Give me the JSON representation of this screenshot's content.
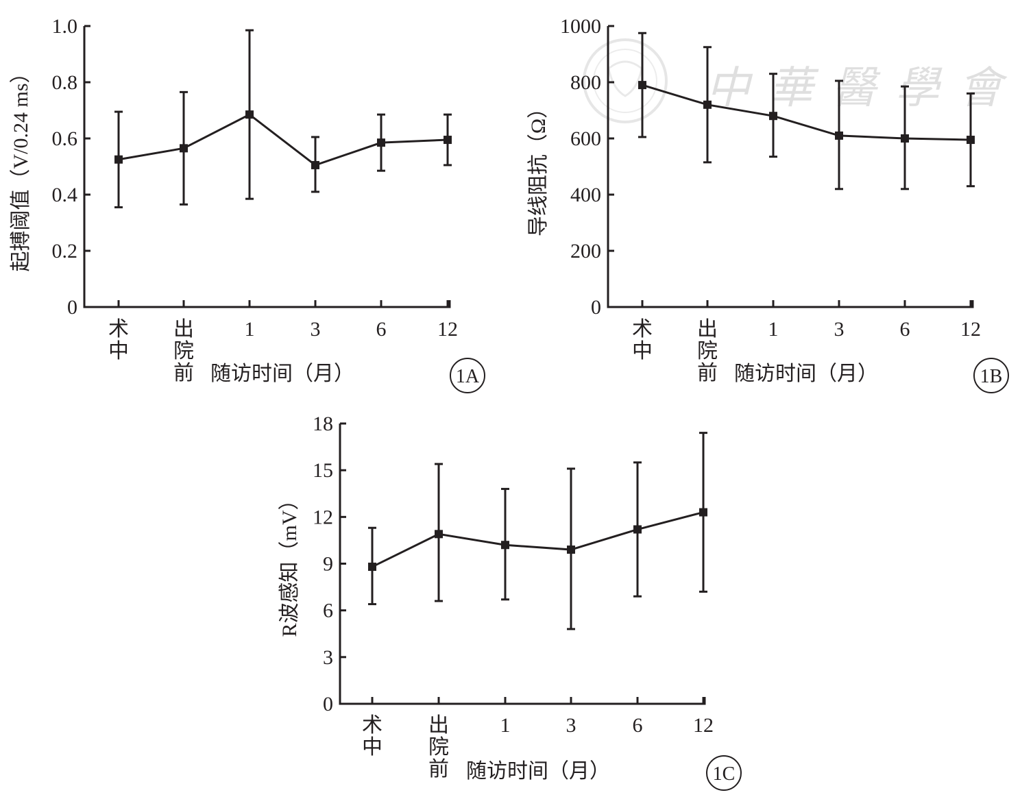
{
  "watermark": {
    "text": "中華醫學會",
    "color": "#d8d8d8"
  },
  "colors": {
    "ink": "#231f20"
  },
  "chart_data": [
    {
      "id": "1A",
      "type": "line",
      "panel_label": "1A",
      "title": "",
      "ylabel": "起搏阈值（V/0.24 ms）",
      "xlabel": "随访时间（月）",
      "categories": [
        [
          "术",
          "中"
        ],
        [
          "出",
          "院",
          "前"
        ],
        [
          "1"
        ],
        [
          "3"
        ],
        [
          "6"
        ],
        [
          "12"
        ]
      ],
      "yticks": [
        "0",
        "0.2",
        "0.4",
        "0.6",
        "0.8",
        "1.0"
      ],
      "ytick_values": [
        0,
        0.2,
        0.4,
        0.6,
        0.8,
        1.0
      ],
      "ylim": [
        0,
        1.0
      ],
      "grid": false,
      "series": [
        {
          "name": "起搏阈值",
          "values": [
            0.525,
            0.565,
            0.685,
            0.505,
            0.585,
            0.595
          ],
          "err_low": [
            0.355,
            0.365,
            0.385,
            0.41,
            0.485,
            0.505
          ],
          "err_high": [
            0.695,
            0.765,
            0.985,
            0.605,
            0.685,
            0.685
          ]
        }
      ]
    },
    {
      "id": "1B",
      "type": "line",
      "panel_label": "1B",
      "title": "",
      "ylabel": "导线阻抗（Ω）",
      "xlabel": "随访时间（月）",
      "categories": [
        [
          "术",
          "中"
        ],
        [
          "出",
          "院",
          "前"
        ],
        [
          "1"
        ],
        [
          "3"
        ],
        [
          "6"
        ],
        [
          "12"
        ]
      ],
      "yticks": [
        "0",
        "200",
        "400",
        "600",
        "800",
        "1000"
      ],
      "ytick_values": [
        0,
        200,
        400,
        600,
        800,
        1000
      ],
      "ylim": [
        0,
        1000
      ],
      "grid": false,
      "series": [
        {
          "name": "导线阻抗",
          "values": [
            790,
            720,
            680,
            610,
            600,
            595
          ],
          "err_low": [
            605,
            515,
            535,
            420,
            420,
            430
          ],
          "err_high": [
            975,
            925,
            830,
            805,
            785,
            760
          ]
        }
      ]
    },
    {
      "id": "1C",
      "type": "line",
      "panel_label": "1C",
      "title": "",
      "ylabel": "R波感知（mV）",
      "xlabel": "随访时间（月）",
      "categories": [
        [
          "术",
          "中"
        ],
        [
          "出",
          "院",
          "前"
        ],
        [
          "1"
        ],
        [
          "3"
        ],
        [
          "6"
        ],
        [
          "12"
        ]
      ],
      "yticks": [
        "0",
        "3",
        "6",
        "9",
        "12",
        "15",
        "18"
      ],
      "ytick_values": [
        0,
        3,
        6,
        9,
        12,
        15,
        18
      ],
      "ylim": [
        0,
        18
      ],
      "grid": false,
      "series": [
        {
          "name": "R波感知",
          "values": [
            8.8,
            10.9,
            10.2,
            9.9,
            11.2,
            12.3
          ],
          "err_low": [
            6.4,
            6.6,
            6.7,
            4.8,
            6.9,
            7.2
          ],
          "err_high": [
            11.3,
            15.4,
            13.8,
            15.1,
            15.5,
            17.4
          ]
        }
      ]
    }
  ]
}
